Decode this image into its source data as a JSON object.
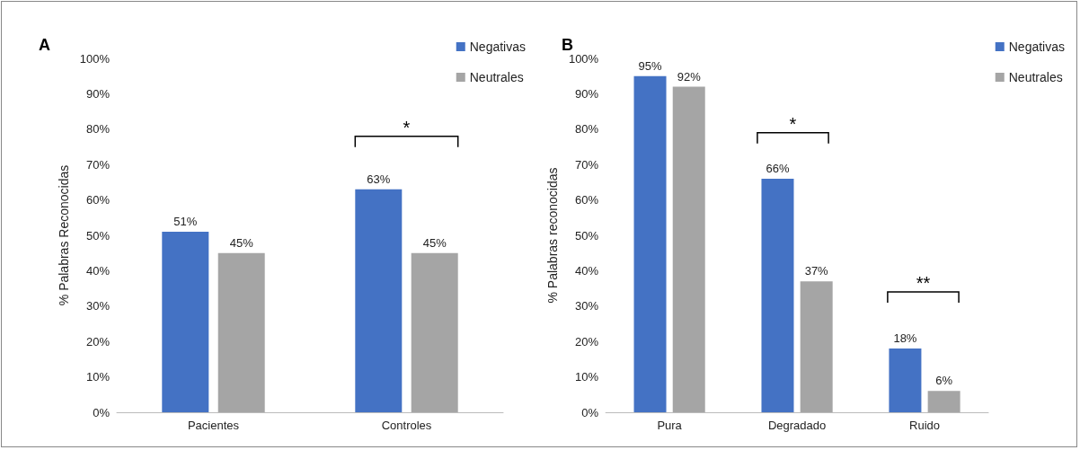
{
  "chart_data": [
    {
      "type": "bar",
      "title": "A",
      "ylabel": "% Palabras Reconocidas",
      "categories": [
        "Pacientes",
        "Controles"
      ],
      "series": [
        {
          "name": "Negativas",
          "color": "#4472c4",
          "values": [
            51,
            63
          ],
          "value_labels": [
            "51%",
            "63%"
          ]
        },
        {
          "name": "Neutrales",
          "color": "#a5a5a5",
          "values": [
            45,
            45
          ],
          "value_labels": [
            "45%",
            "45%"
          ]
        }
      ],
      "ylim": [
        0,
        100
      ],
      "yticks": [
        {
          "value": 0,
          "label": "0%"
        },
        {
          "value": 10,
          "label": "10%"
        },
        {
          "value": 20,
          "label": "20%"
        },
        {
          "value": 30,
          "label": "30%"
        },
        {
          "value": 40,
          "label": "40%"
        },
        {
          "value": 50,
          "label": "50%"
        },
        {
          "value": 60,
          "label": "60%"
        },
        {
          "value": 70,
          "label": "70%"
        },
        {
          "value": 80,
          "label": "80%"
        },
        {
          "value": 90,
          "label": "90%"
        },
        {
          "value": 100,
          "label": "100%"
        }
      ],
      "annotations": [
        "*"
      ],
      "grid": false,
      "legend": "top right"
    },
    {
      "type": "bar",
      "title": "B",
      "ylabel": "% Palabras reconocidas",
      "categories": [
        "Pura",
        "Degradado",
        "Ruido"
      ],
      "series": [
        {
          "name": "Negativas",
          "color": "#4472c4",
          "values": [
            95,
            66,
            18
          ],
          "value_labels": [
            "95%",
            "66%",
            "18%"
          ]
        },
        {
          "name": "Neutrales",
          "color": "#a5a5a5",
          "values": [
            92,
            37,
            6
          ],
          "value_labels": [
            "92%",
            "37%",
            "6%"
          ]
        }
      ],
      "ylim": [
        0,
        100
      ],
      "yticks": [
        {
          "value": 0,
          "label": "0%"
        },
        {
          "value": 10,
          "label": "10%"
        },
        {
          "value": 20,
          "label": "20%"
        },
        {
          "value": 30,
          "label": "30%"
        },
        {
          "value": 40,
          "label": "40%"
        },
        {
          "value": 50,
          "label": "50%"
        },
        {
          "value": 60,
          "label": "60%"
        },
        {
          "value": 70,
          "label": "70%"
        },
        {
          "value": 80,
          "label": "80%"
        },
        {
          "value": 90,
          "label": "90%"
        },
        {
          "value": 100,
          "label": "100%"
        }
      ],
      "annotations": [
        "*",
        "**"
      ],
      "grid": false,
      "legend": "top right"
    }
  ]
}
